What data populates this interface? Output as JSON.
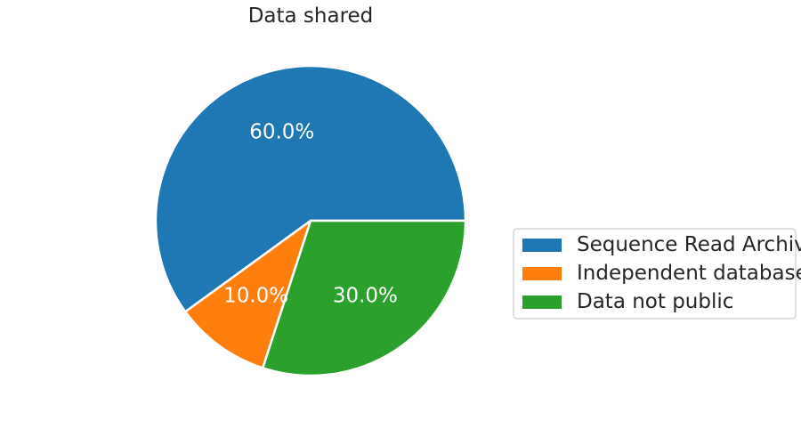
{
  "chart_data": {
    "type": "pie",
    "title": "Data shared",
    "slices": [
      {
        "label": "Sequence Read Archive",
        "value": 60.0,
        "pct_label": "60.0%",
        "color": "#1f77b4"
      },
      {
        "label": "Independent databases",
        "value": 10.0,
        "pct_label": "10.0%",
        "color": "#ff7f0e"
      },
      {
        "label": "Data not public",
        "value": 30.0,
        "pct_label": "30.0%",
        "color": "#2ca02c"
      }
    ],
    "start_angle_deg": 0,
    "direction": "counterclockwise",
    "legend_placement": "right",
    "wedge_edge_color": "#ffffff"
  }
}
